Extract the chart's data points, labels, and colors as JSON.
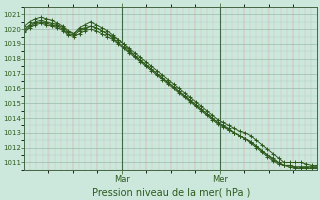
{
  "title": "Pression niveau de la mer( hPa )",
  "bg_color": "#cce8dd",
  "plot_bg_color": "#cce8dd",
  "line_color": "#2d5a1b",
  "marker_color": "#2d5a1b",
  "ylim": [
    1010.5,
    1021.5
  ],
  "yticks": [
    1011,
    1012,
    1013,
    1014,
    1015,
    1016,
    1017,
    1018,
    1019,
    1020,
    1021
  ],
  "ylabel_color": "#2d5a1b",
  "day_labels": [
    "Mar",
    "Mer"
  ],
  "day_label_fontsize": 6,
  "title_fontsize": 7,
  "n_points": 54,
  "series": [
    [
      1020.0,
      1020.3,
      1020.5,
      1020.6,
      1020.5,
      1020.4,
      1020.3,
      1020.1,
      1019.8,
      1019.7,
      1020.0,
      1020.1,
      1020.2,
      1020.1,
      1019.9,
      1019.7,
      1019.5,
      1019.3,
      1019.0,
      1018.7,
      1018.4,
      1018.1,
      1017.8,
      1017.5,
      1017.2,
      1016.9,
      1016.6,
      1016.3,
      1016.0,
      1015.7,
      1015.4,
      1015.1,
      1014.8,
      1014.5,
      1014.2,
      1013.9,
      1013.7,
      1013.5,
      1013.3,
      1013.1,
      1013.0,
      1012.8,
      1012.5,
      1012.2,
      1011.9,
      1011.6,
      1011.3,
      1011.0,
      1011.0,
      1011.0,
      1011.0,
      1010.9,
      1010.8,
      1010.8
    ],
    [
      1020.2,
      1020.5,
      1020.7,
      1020.8,
      1020.7,
      1020.6,
      1020.4,
      1020.2,
      1019.9,
      1019.7,
      1020.1,
      1020.3,
      1020.5,
      1020.3,
      1020.1,
      1019.9,
      1019.6,
      1019.3,
      1019.0,
      1018.6,
      1018.2,
      1017.9,
      1017.6,
      1017.3,
      1017.0,
      1016.7,
      1016.4,
      1016.1,
      1015.8,
      1015.5,
      1015.2,
      1014.9,
      1014.6,
      1014.3,
      1014.0,
      1013.7,
      1013.5,
      1013.2,
      1013.0,
      1012.8,
      1012.6,
      1012.3,
      1012.0,
      1011.7,
      1011.4,
      1011.1,
      1010.9,
      1010.8,
      1010.8,
      1010.7,
      1010.7,
      1010.7,
      1010.7,
      1010.7
    ],
    [
      1019.8,
      1020.1,
      1020.3,
      1020.4,
      1020.3,
      1020.2,
      1020.1,
      1019.9,
      1019.6,
      1019.5,
      1019.7,
      1019.9,
      1020.0,
      1019.9,
      1019.7,
      1019.5,
      1019.3,
      1019.0,
      1018.7,
      1018.4,
      1018.1,
      1017.8,
      1017.5,
      1017.2,
      1016.9,
      1016.6,
      1016.3,
      1016.0,
      1015.7,
      1015.4,
      1015.1,
      1014.8,
      1014.5,
      1014.2,
      1013.9,
      1013.6,
      1013.4,
      1013.2,
      1013.0,
      1012.8,
      1012.6,
      1012.4,
      1012.1,
      1011.8,
      1011.5,
      1011.2,
      1011.0,
      1010.8,
      1010.7,
      1010.6,
      1010.6,
      1010.6,
      1010.6,
      1010.6
    ],
    [
      1019.9,
      1020.2,
      1020.4,
      1020.5,
      1020.4,
      1020.3,
      1020.2,
      1020.0,
      1019.7,
      1019.6,
      1019.9,
      1020.0,
      1020.2,
      1020.1,
      1019.9,
      1019.7,
      1019.4,
      1019.1,
      1018.8,
      1018.5,
      1018.2,
      1017.9,
      1017.6,
      1017.3,
      1017.0,
      1016.7,
      1016.4,
      1016.1,
      1015.8,
      1015.5,
      1015.2,
      1014.9,
      1014.6,
      1014.3,
      1014.0,
      1013.7,
      1013.5,
      1013.3,
      1013.0,
      1012.8,
      1012.6,
      1012.4,
      1012.1,
      1011.8,
      1011.5,
      1011.3,
      1011.0,
      1010.8,
      1010.8,
      1010.7,
      1010.7,
      1010.7,
      1010.7,
      1010.7
    ]
  ],
  "vline_positions": [
    0.333,
    0.667
  ],
  "major_hgrid_color": "#99bbaa",
  "minor_hgrid_color": "#aaccbb",
  "major_vgrid_color": "#cc9999",
  "minor_vgrid_color": "#ddaaaa",
  "vline_color": "#446644"
}
